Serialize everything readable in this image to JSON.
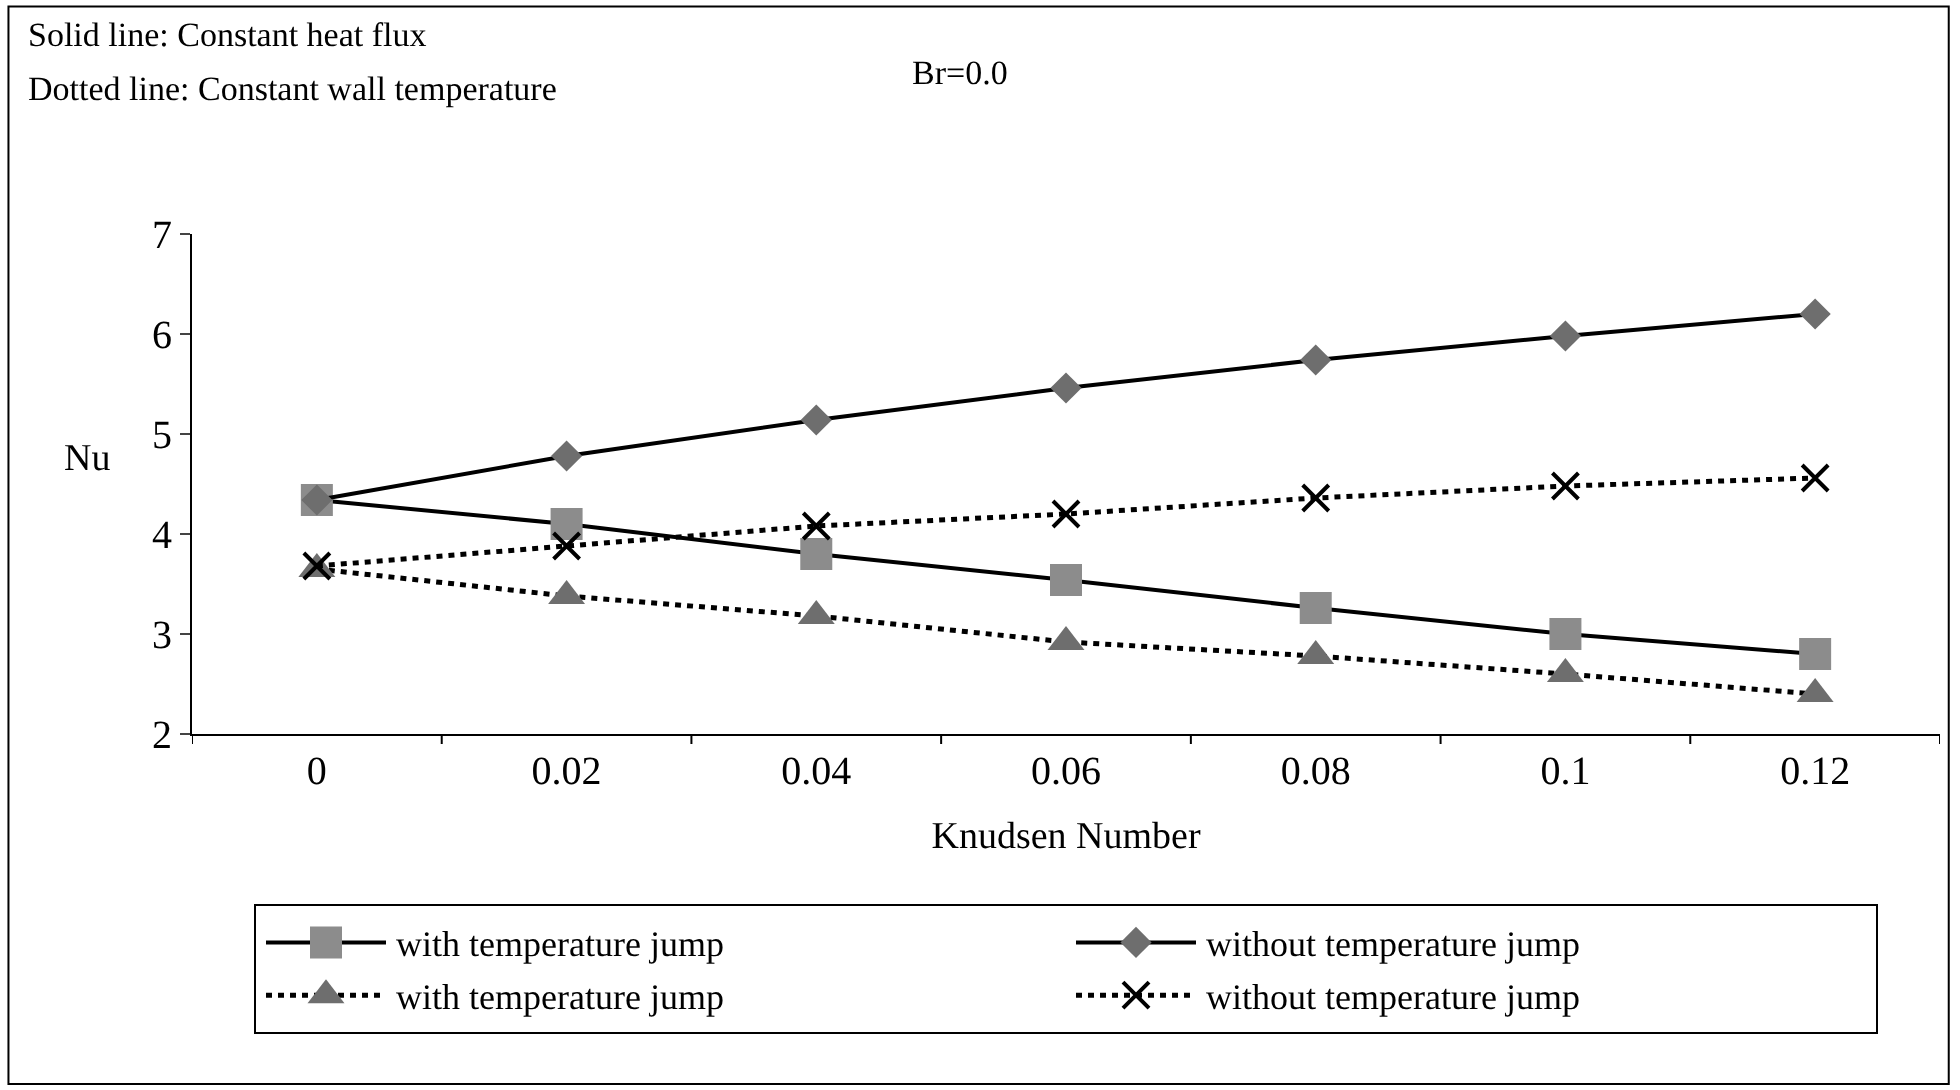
{
  "chart_data": {
    "type": "line",
    "annotations": [
      "Solid line: Constant heat flux",
      "Dotted line: Constant wall temperature",
      "Br=0.0"
    ],
    "xlabel": "Knudsen Number",
    "ylabel": "Nu",
    "categories": [
      "0",
      "0.02",
      "0.04",
      "0.06",
      "0.08",
      "0.1",
      "0.12"
    ],
    "series": [
      {
        "name": "with temperature jump",
        "color": "#8c8c8c",
        "marker": "square",
        "line_style": "solid",
        "values": [
          4.34,
          4.1,
          3.8,
          3.54,
          3.26,
          3.0,
          2.8
        ]
      },
      {
        "name": "without temperature jump",
        "color": "#6e6e6e",
        "marker": "diamond",
        "line_style": "solid",
        "values": [
          4.34,
          4.78,
          5.14,
          5.46,
          5.74,
          5.98,
          6.2
        ]
      },
      {
        "name": "with temperature jump",
        "color": "#6e6e6e",
        "marker": "triangle",
        "line_style": "dotted",
        "values": [
          3.65,
          3.38,
          3.18,
          2.92,
          2.78,
          2.6,
          2.4
        ]
      },
      {
        "name": "without temperature jump",
        "color": "#000000",
        "marker": "cross",
        "line_style": "dotted",
        "values": [
          3.68,
          3.88,
          4.08,
          4.2,
          4.36,
          4.48,
          4.56
        ]
      }
    ],
    "ylim": [
      2,
      7
    ],
    "yticks": [
      2,
      3,
      4,
      5,
      6,
      7
    ],
    "legend": "bottom"
  }
}
